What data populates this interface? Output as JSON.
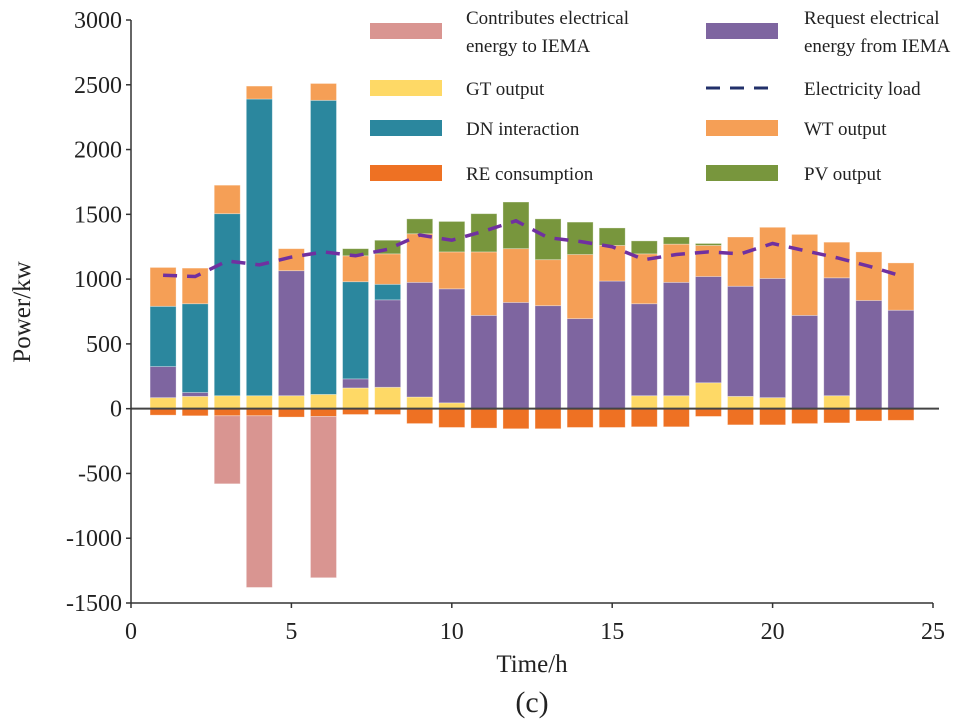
{
  "chart_data": {
    "type": "bar",
    "stacked": true,
    "xlabel": "Time/h",
    "ylabel": "Power/kw",
    "caption": "(c)",
    "xlim": [
      0,
      25
    ],
    "ylim": [
      -1500,
      3000
    ],
    "xticks": [
      0,
      5,
      10,
      15,
      20,
      25
    ],
    "yticks": [
      -1500,
      -1000,
      -500,
      0,
      500,
      1000,
      1500,
      2000,
      2500,
      3000
    ],
    "grid": false,
    "legend_placement": "top-right",
    "x": [
      1,
      2,
      3,
      4,
      5,
      6,
      7,
      8,
      9,
      10,
      11,
      12,
      13,
      14,
      15,
      16,
      17,
      18,
      19,
      20,
      21,
      22,
      23,
      24
    ],
    "series": [
      {
        "name": "GT output",
        "key": "gt",
        "color": "#FED966",
        "values": [
          85,
          95,
          100,
          100,
          100,
          110,
          160,
          165,
          90,
          45,
          0,
          0,
          0,
          0,
          0,
          100,
          100,
          200,
          95,
          85,
          0,
          100,
          0,
          0
        ]
      },
      {
        "name": "Request electrical energy from IEMA",
        "key": "req",
        "color": "#7E65A0",
        "values": [
          240,
          30,
          0,
          0,
          965,
          0,
          70,
          675,
          885,
          880,
          720,
          820,
          795,
          695,
          985,
          710,
          875,
          820,
          850,
          920,
          720,
          910,
          835,
          760
        ]
      },
      {
        "name": "DN interaction",
        "key": "dn",
        "color": "#2B879E",
        "values": [
          465,
          685,
          1405,
          2290,
          0,
          2270,
          750,
          120,
          0,
          0,
          0,
          0,
          0,
          0,
          0,
          0,
          0,
          0,
          0,
          0,
          0,
          0,
          0,
          0
        ]
      },
      {
        "name": "WT output",
        "key": "wt",
        "color": "#F59F56",
        "values": [
          300,
          275,
          220,
          100,
          170,
          130,
          200,
          235,
          375,
          285,
          490,
          415,
          355,
          495,
          275,
          385,
          295,
          240,
          380,
          395,
          625,
          275,
          375,
          365
        ]
      },
      {
        "name": "PV output",
        "key": "pv",
        "color": "#78963D",
        "values": [
          0,
          0,
          0,
          0,
          0,
          0,
          55,
          105,
          115,
          235,
          295,
          360,
          315,
          250,
          135,
          100,
          55,
          15,
          0,
          0,
          0,
          0,
          0,
          0
        ]
      },
      {
        "name": "RE consumption",
        "key": "re",
        "color": "#EE7123",
        "values": [
          -50,
          -55,
          -55,
          -55,
          -65,
          -60,
          -45,
          -45,
          -115,
          -145,
          -150,
          -155,
          -155,
          -145,
          -145,
          -140,
          -140,
          -60,
          -125,
          -125,
          -115,
          -110,
          -95,
          -90
        ]
      },
      {
        "name": "Contributes electrical energy to IEMA",
        "key": "con",
        "color": "#D99591",
        "values": [
          0,
          0,
          -525,
          -1325,
          0,
          -1245,
          0,
          0,
          0,
          0,
          0,
          0,
          0,
          0,
          0,
          0,
          0,
          0,
          0,
          0,
          0,
          0,
          0,
          0
        ]
      }
    ],
    "line": {
      "name": "Electricity load",
      "color": "#7030A0",
      "legend_color": "#22306A",
      "style": "dashed",
      "values": [
        1030,
        1020,
        1140,
        1110,
        1170,
        1210,
        1180,
        1230,
        1340,
        1300,
        1370,
        1450,
        1320,
        1290,
        1250,
        1150,
        1190,
        1210,
        1195,
        1275,
        1220,
        1165,
        1100,
        1025
      ]
    },
    "legend": [
      {
        "label_lines": [
          "Contributes electrical",
          "energy to IEMA"
        ],
        "color": "#D99591",
        "kind": "box"
      },
      {
        "label_lines": [
          "Request electrical",
          "energy from IEMA"
        ],
        "color": "#7E65A0",
        "kind": "box"
      },
      {
        "label_lines": [
          "GT output"
        ],
        "color": "#FED966",
        "kind": "box"
      },
      {
        "label_lines": [
          "Electricity load"
        ],
        "color": "#22306A",
        "kind": "dash"
      },
      {
        "label_lines": [
          "DN interaction"
        ],
        "color": "#2B879E",
        "kind": "box"
      },
      {
        "label_lines": [
          "WT output"
        ],
        "color": "#F59F56",
        "kind": "box"
      },
      {
        "label_lines": [
          "RE consumption"
        ],
        "color": "#EE7123",
        "kind": "box"
      },
      {
        "label_lines": [
          "PV output"
        ],
        "color": "#78963D",
        "kind": "box"
      }
    ]
  }
}
